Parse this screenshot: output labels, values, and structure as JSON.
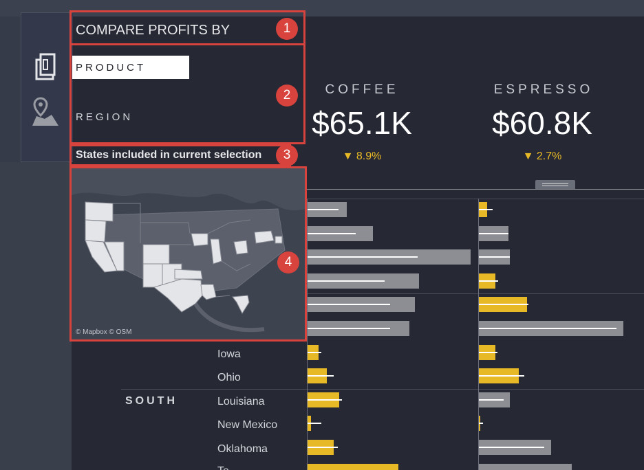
{
  "sidebar": {
    "icons": [
      "product-icon",
      "map-pin-icon"
    ]
  },
  "compare": {
    "title": "COMPARE PROFITS BY",
    "options": [
      "PRODUCT",
      "REGION"
    ],
    "selected": "PRODUCT"
  },
  "states_title": "States included in current selection",
  "map": {
    "credit": "© Mapbox © OSM"
  },
  "kpis": [
    {
      "name": "COFFEE",
      "value": "$65.1K",
      "change": "▼ 8.9%"
    },
    {
      "name": "ESPRESSO",
      "value": "$60.8K",
      "change": "▼ 2.7%"
    }
  ],
  "table": {
    "regions": [
      "SOUTH"
    ],
    "states": [
      "Iowa",
      "Ohio",
      "Louisiana",
      "New Mexico",
      "Oklahoma",
      "Te"
    ]
  },
  "chart_data": {
    "type": "bar",
    "series": [
      {
        "name": "COFFEE",
        "rows": [
          {
            "value": 57,
            "target": 45,
            "color": "gray"
          },
          {
            "value": 95,
            "target": 70,
            "color": "gray"
          },
          {
            "value": 237,
            "target": 160,
            "color": "gray"
          },
          {
            "value": 162,
            "target": 112,
            "color": "gray"
          },
          {
            "value": 156,
            "target": 120,
            "color": "gray"
          },
          {
            "value": 148,
            "target": 120,
            "color": "gray"
          },
          {
            "value": 16,
            "target": 20,
            "color": "yellow"
          },
          {
            "value": 28,
            "target": 38,
            "color": "yellow"
          },
          {
            "value": 46,
            "target": 50,
            "color": "yellow"
          },
          {
            "value": 5,
            "target": 20,
            "color": "yellow"
          },
          {
            "value": 38,
            "target": 44,
            "color": "yellow"
          },
          {
            "value": 132,
            "target": 120,
            "color": "yellow"
          }
        ]
      },
      {
        "name": "ESPRESSO",
        "rows": [
          {
            "value": 12,
            "target": 20,
            "color": "yellow"
          },
          {
            "value": 43,
            "target": 43,
            "color": "gray"
          },
          {
            "value": 45,
            "target": 45,
            "color": "gray"
          },
          {
            "value": 24,
            "target": 28,
            "color": "yellow"
          },
          {
            "value": 70,
            "target": 72,
            "color": "yellow"
          },
          {
            "value": 210,
            "target": 200,
            "color": "gray"
          },
          {
            "value": 24,
            "target": 27,
            "color": "yellow"
          },
          {
            "value": 58,
            "target": 66,
            "color": "yellow"
          },
          {
            "value": 45,
            "target": 36,
            "color": "gray"
          },
          {
            "value": 2,
            "target": 6,
            "color": "yellow"
          },
          {
            "value": 105,
            "target": 95,
            "color": "gray"
          },
          {
            "value": 135,
            "target": 130,
            "color": "gray"
          }
        ]
      }
    ]
  },
  "colors": {
    "yellow": "#e8b926",
    "gray": "#8c8e94",
    "highlight": "#d9433d",
    "background": "#262833"
  },
  "annotations": [
    "1",
    "2",
    "3",
    "4"
  ]
}
